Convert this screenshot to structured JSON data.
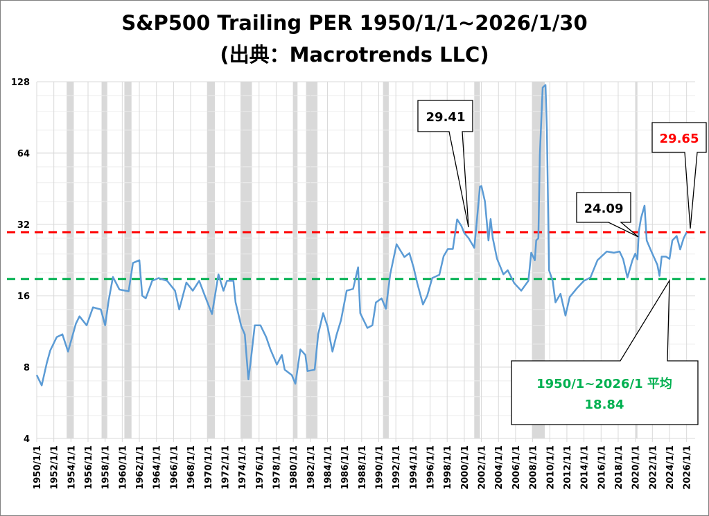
{
  "title_line1": "S&P500 Trailing PER 1950/1/1~2026/1/30",
  "title_line2": "(出典：Macrotrends LLC)",
  "colors": {
    "series": "#5b9bd5",
    "current_line": "#ff0000",
    "average_line": "#00b050",
    "recession": "#d9d9d9"
  },
  "chart_data": {
    "type": "line",
    "title": "S&P500 Trailing PER 1950/1/1~2026/1/30",
    "xlabel": "",
    "ylabel": "",
    "y_scale": "log2",
    "ylim": [
      4,
      128
    ],
    "y_ticks": [
      "128",
      "64",
      "32",
      "16",
      "8",
      "4"
    ],
    "xlim": [
      "1950-01",
      "2027-01"
    ],
    "x_ticks": [
      "1950/1/1",
      "1952/1/1",
      "1954/1/1",
      "1956/1/1",
      "1958/1/1",
      "1960/1/1",
      "1962/1/1",
      "1964/1/1",
      "1966/1/1",
      "1968/1/1",
      "1970/1/1",
      "1972/1/1",
      "1974/1/1",
      "1976/1/1",
      "1978/1/1",
      "1980/1/1",
      "1982/1/1",
      "1984/1/1",
      "1986/1/1",
      "1988/1/1",
      "1990/1/1",
      "1992/1/1",
      "1994/1/1",
      "1996/1/1",
      "1998/1/1",
      "2000/1/1",
      "2002/1/1",
      "2004/1/1",
      "2006/1/1",
      "2008/1/1",
      "2010/1/1",
      "2012/1/1",
      "2014/1/1",
      "2016/1/1",
      "2018/1/1",
      "2020/1/1",
      "2022/1/1",
      "2024/1/1",
      "2026/1/1"
    ],
    "grid": true,
    "series": [
      {
        "points": [
          [
            "1950-01",
            7.4
          ],
          [
            "1950-08",
            6.7
          ],
          [
            "1951-03",
            8.3
          ],
          [
            "1951-08",
            9.4
          ],
          [
            "1952-05",
            10.7
          ],
          [
            "1953-01",
            11.0
          ],
          [
            "1953-09",
            9.3
          ],
          [
            "1954-08",
            12.2
          ],
          [
            "1955-01",
            13.1
          ],
          [
            "1955-11",
            12.0
          ],
          [
            "1956-08",
            14.3
          ],
          [
            "1957-07",
            14.0
          ],
          [
            "1958-01",
            12.0
          ],
          [
            "1958-06",
            15.3
          ],
          [
            "1958-12",
            19.2
          ],
          [
            "1959-09",
            17.0
          ],
          [
            "1960-10",
            16.7
          ],
          [
            "1961-04",
            22.0
          ],
          [
            "1962-01",
            22.6
          ],
          [
            "1962-05",
            16.0
          ],
          [
            "1962-10",
            15.6
          ],
          [
            "1963-07",
            18.5
          ],
          [
            "1964-04",
            19.0
          ],
          [
            "1965-04",
            18.5
          ],
          [
            "1966-03",
            16.8
          ],
          [
            "1966-09",
            14.0
          ],
          [
            "1967-07",
            18.2
          ],
          [
            "1968-04",
            16.8
          ],
          [
            "1969-01",
            18.5
          ],
          [
            "1969-09",
            16.0
          ],
          [
            "1970-07",
            13.4
          ],
          [
            "1971-04",
            19.7
          ],
          [
            "1971-11",
            16.8
          ],
          [
            "1972-04",
            18.5
          ],
          [
            "1973-01",
            18.5
          ],
          [
            "1973-04",
            15.0
          ],
          [
            "1973-12",
            11.9
          ],
          [
            "1974-05",
            11.0
          ],
          [
            "1974-10",
            7.1
          ],
          [
            "1975-01",
            8.3
          ],
          [
            "1975-07",
            12.0
          ],
          [
            "1976-03",
            12.0
          ],
          [
            "1976-11",
            10.7
          ],
          [
            "1977-05",
            9.5
          ],
          [
            "1978-02",
            8.2
          ],
          [
            "1978-09",
            9.0
          ],
          [
            "1979-01",
            7.8
          ],
          [
            "1979-11",
            7.4
          ],
          [
            "1980-04",
            6.8
          ],
          [
            "1980-11",
            9.5
          ],
          [
            "1981-06",
            9.0
          ],
          [
            "1981-09",
            7.7
          ],
          [
            "1982-07",
            7.8
          ],
          [
            "1982-12",
            11.0
          ],
          [
            "1983-07",
            13.5
          ],
          [
            "1984-01",
            11.9
          ],
          [
            "1984-08",
            9.3
          ],
          [
            "1985-02",
            11.0
          ],
          [
            "1985-08",
            12.6
          ],
          [
            "1986-04",
            16.8
          ],
          [
            "1987-01",
            17.1
          ],
          [
            "1987-08",
            21.1
          ],
          [
            "1987-11",
            13.5
          ],
          [
            "1988-09",
            11.7
          ],
          [
            "1989-04",
            12.0
          ],
          [
            "1989-09",
            15.0
          ],
          [
            "1990-05",
            15.6
          ],
          [
            "1990-11",
            14.1
          ],
          [
            "1991-05",
            19.7
          ],
          [
            "1992-02",
            26.4
          ],
          [
            "1993-01",
            23.3
          ],
          [
            "1993-08",
            24.2
          ],
          [
            "1994-02",
            21.0
          ],
          [
            "1994-07",
            18.1
          ],
          [
            "1995-03",
            14.7
          ],
          [
            "1995-09",
            16.0
          ],
          [
            "1996-04",
            19.0
          ],
          [
            "1997-02",
            19.6
          ],
          [
            "1997-08",
            23.5
          ],
          [
            "1998-02",
            25.2
          ],
          [
            "1998-09",
            25.2
          ],
          [
            "1999-03",
            33.6
          ],
          [
            "1999-09",
            31.5
          ],
          [
            "2000-01",
            29.41
          ],
          [
            "2000-07",
            28.0
          ],
          [
            "2001-03",
            25.5
          ],
          [
            "2001-07",
            34.0
          ],
          [
            "2001-11",
            46.2
          ],
          [
            "2002-01",
            46.5
          ],
          [
            "2002-06",
            40.0
          ],
          [
            "2002-11",
            27.4
          ],
          [
            "2003-02",
            33.7
          ],
          [
            "2003-05",
            28.0
          ],
          [
            "2003-11",
            22.9
          ],
          [
            "2004-08",
            19.7
          ],
          [
            "2005-02",
            20.5
          ],
          [
            "2005-11",
            18.1
          ],
          [
            "2006-09",
            16.8
          ],
          [
            "2007-07",
            18.5
          ],
          [
            "2007-11",
            24.3
          ],
          [
            "2008-04",
            22.6
          ],
          [
            "2008-06",
            27.4
          ],
          [
            "2008-09",
            28.0
          ],
          [
            "2008-11",
            62.7
          ],
          [
            "2009-03",
            121
          ],
          [
            "2009-07",
            124
          ],
          [
            "2009-09",
            80
          ],
          [
            "2009-12",
            20.5
          ],
          [
            "2010-05",
            18.5
          ],
          [
            "2010-09",
            15.0
          ],
          [
            "2011-04",
            16.3
          ],
          [
            "2011-11",
            13.2
          ],
          [
            "2012-05",
            15.8
          ],
          [
            "2013-03",
            17.2
          ],
          [
            "2014-01",
            18.5
          ],
          [
            "2014-10",
            19.1
          ],
          [
            "2015-08",
            22.6
          ],
          [
            "2016-09",
            24.6
          ],
          [
            "2017-07",
            24.3
          ],
          [
            "2018-03",
            24.6
          ],
          [
            "2018-08",
            22.8
          ],
          [
            "2019-02",
            19.1
          ],
          [
            "2019-09",
            22.6
          ],
          [
            "2020-01",
            24.09
          ],
          [
            "2020-04",
            22.8
          ],
          [
            "2020-06",
            30.0
          ],
          [
            "2020-09",
            34.0
          ],
          [
            "2021-02",
            38.4
          ],
          [
            "2021-05",
            27.4
          ],
          [
            "2021-11",
            24.8
          ],
          [
            "2022-08",
            21.6
          ],
          [
            "2022-11",
            19.4
          ],
          [
            "2023-02",
            23.4
          ],
          [
            "2023-08",
            23.4
          ],
          [
            "2024-01",
            22.9
          ],
          [
            "2024-05",
            27.4
          ],
          [
            "2024-11",
            28.6
          ],
          [
            "2025-04",
            25.1
          ],
          [
            "2025-09",
            28.0
          ],
          [
            "2026-01",
            29.65
          ]
        ]
      }
    ],
    "recessions": [
      [
        "1953-07",
        "1954-05"
      ],
      [
        "1957-08",
        "1958-04"
      ],
      [
        "1960-04",
        "1961-02"
      ],
      [
        "1969-12",
        "1970-11"
      ],
      [
        "1973-11",
        "1975-03"
      ],
      [
        "1980-01",
        "1980-07"
      ],
      [
        "1981-07",
        "1982-11"
      ],
      [
        "1990-07",
        "1991-03"
      ],
      [
        "2001-03",
        "2001-11"
      ],
      [
        "2007-12",
        "2009-06"
      ],
      [
        "2020-02",
        "2020-04"
      ]
    ],
    "reference_lines": [
      {
        "value": 29.65,
        "color": "#ff0000",
        "style": "dashed"
      },
      {
        "value": 18.84,
        "color": "#00b050",
        "style": "dashed"
      }
    ],
    "annotations": {
      "peak_2000": {
        "text": "29.41",
        "date": "2000-01",
        "value": 29.41
      },
      "pre_covid": {
        "text": "24.09",
        "date": "2020-01",
        "value": 24.09
      },
      "current": {
        "text": "29.65",
        "date": "2026-01",
        "value": 29.65
      },
      "average_label": "1950/1~2026/1 平均",
      "average_value": "18.84"
    }
  }
}
